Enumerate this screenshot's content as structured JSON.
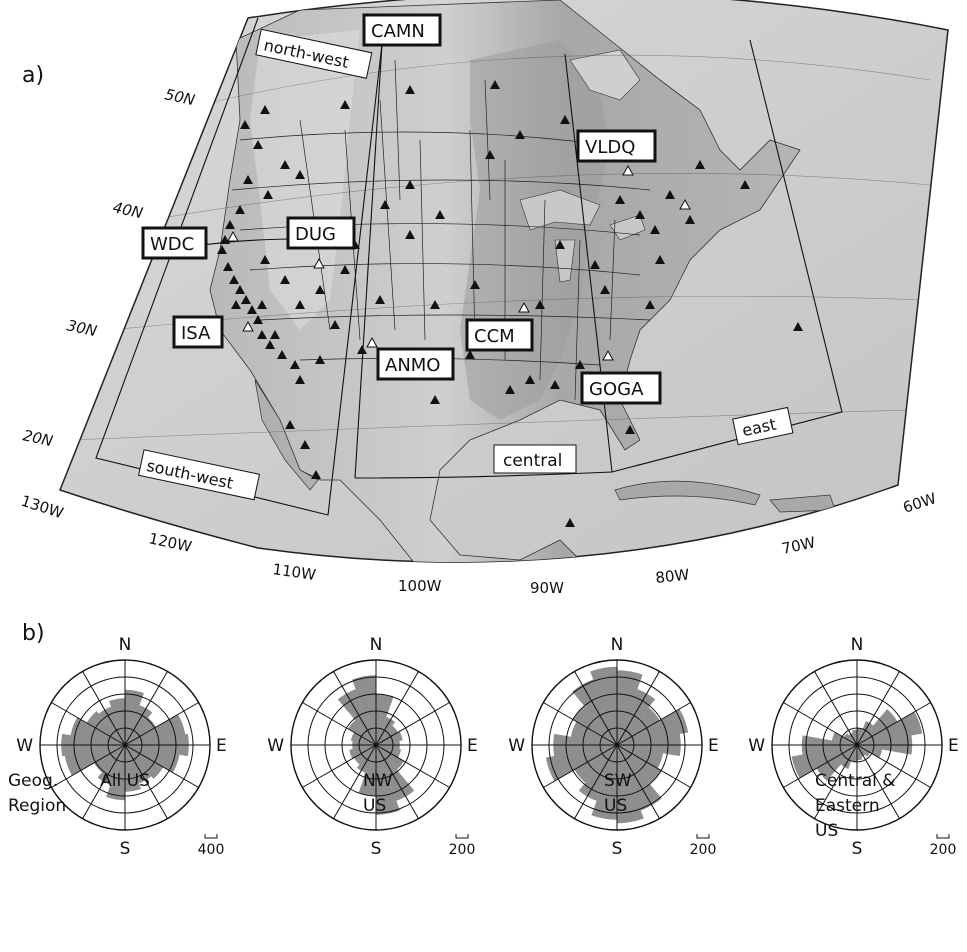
{
  "panel_a": {
    "label": "a)",
    "lat_labels": [
      "50N",
      "40N",
      "30N",
      "20N"
    ],
    "lon_labels": [
      "130W",
      "120W",
      "110W",
      "100W",
      "90W",
      "80W",
      "70W",
      "60W"
    ],
    "regions": [
      "north-west",
      "south-west",
      "central",
      "east"
    ],
    "stations": [
      "CAMN",
      "VLDQ",
      "WDC",
      "DUG",
      "ISA",
      "CCM",
      "ANMO",
      "GOGA"
    ]
  },
  "panel_b": {
    "label": "b)",
    "row_label": "Geog.\nRegion",
    "roses": [
      {
        "name": "All US",
        "line1": "All US",
        "line2": "",
        "line3": "",
        "scale": "400",
        "petals": [
          0.5,
          0.48,
          0.42,
          0.62,
          0.75,
          0.55,
          0.42,
          0.32,
          0.55,
          0.65,
          0.5,
          0.42,
          0.72,
          0.75,
          0.65,
          0.52,
          0.48,
          0.45
        ]
      },
      {
        "name": "NW US",
        "line1": "NW",
        "line2": "US",
        "line3": "",
        "scale": "200",
        "petals": [
          0.55,
          0.32,
          0.28,
          0.3,
          0.25,
          0.22,
          0.25,
          0.4,
          0.82,
          0.6,
          0.35,
          0.3,
          0.32,
          0.28,
          0.3,
          0.38,
          0.7,
          0.8
        ]
      },
      {
        "name": "SW US",
        "line1": "SW",
        "line2": "US",
        "line3": "",
        "scale": "200",
        "petals": [
          0.88,
          0.7,
          0.55,
          0.6,
          0.7,
          0.55,
          0.4,
          0.6,
          0.8,
          0.72,
          0.48,
          0.58,
          0.85,
          0.75,
          0.55,
          0.6,
          0.82,
          0.92
        ]
      },
      {
        "name": "Central & Eastern US",
        "line1": "Central &",
        "line2": "Eastern",
        "line3": "US",
        "scale": "200",
        "petals": [
          0.18,
          0.22,
          0.45,
          0.72,
          0.65,
          0.3,
          0.18,
          0.15,
          0.18,
          0.2,
          0.3,
          0.55,
          0.78,
          0.6,
          0.3,
          0.18,
          0.15,
          0.16
        ]
      }
    ],
    "dir_labels": {
      "n": "N",
      "s": "S",
      "e": "E",
      "w": "W"
    }
  }
}
